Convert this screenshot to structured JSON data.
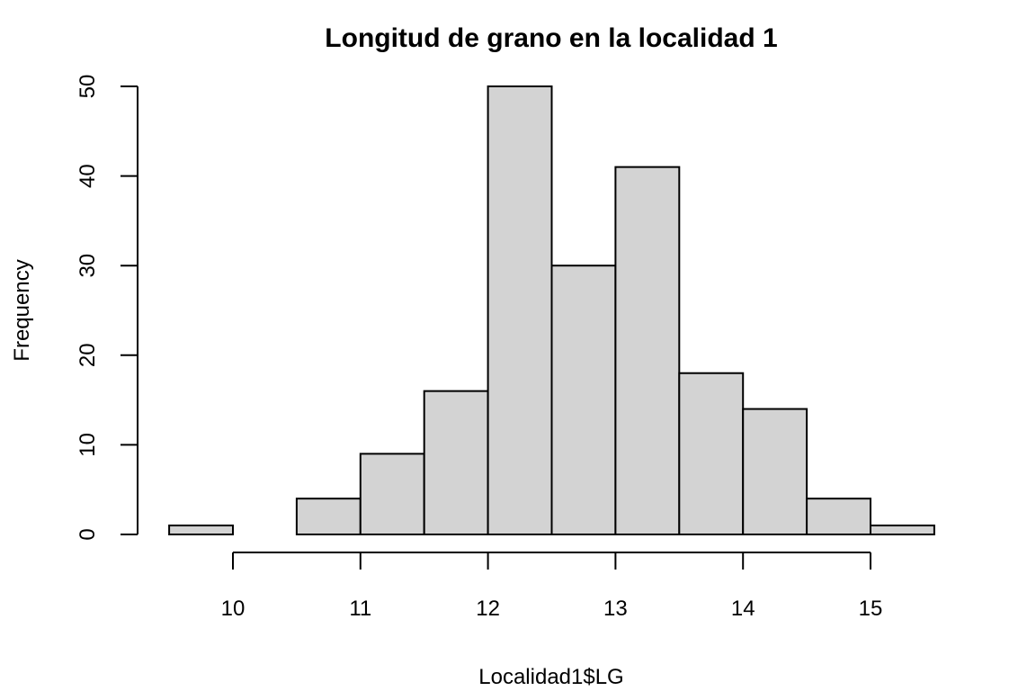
{
  "chart_data": {
    "type": "bar",
    "title": "Longitud de grano en la localidad 1",
    "xlabel": "Localidad1$LG",
    "ylabel": "Frequency",
    "bin_edges": [
      9.5,
      10,
      10.5,
      11,
      11.5,
      12,
      12.5,
      13,
      13.5,
      14,
      14.5,
      15,
      15.5
    ],
    "values": [
      1,
      0,
      4,
      9,
      16,
      50,
      30,
      41,
      18,
      14,
      4,
      1
    ],
    "x_ticks": [
      10,
      11,
      12,
      13,
      14,
      15
    ],
    "y_ticks": [
      0,
      10,
      20,
      30,
      40,
      50
    ],
    "xlim": [
      9.5,
      15.5
    ],
    "ylim": [
      0,
      50
    ],
    "grid": false,
    "legend": "none",
    "bar_color": "#d3d3d3",
    "edge_color": "#000000"
  }
}
